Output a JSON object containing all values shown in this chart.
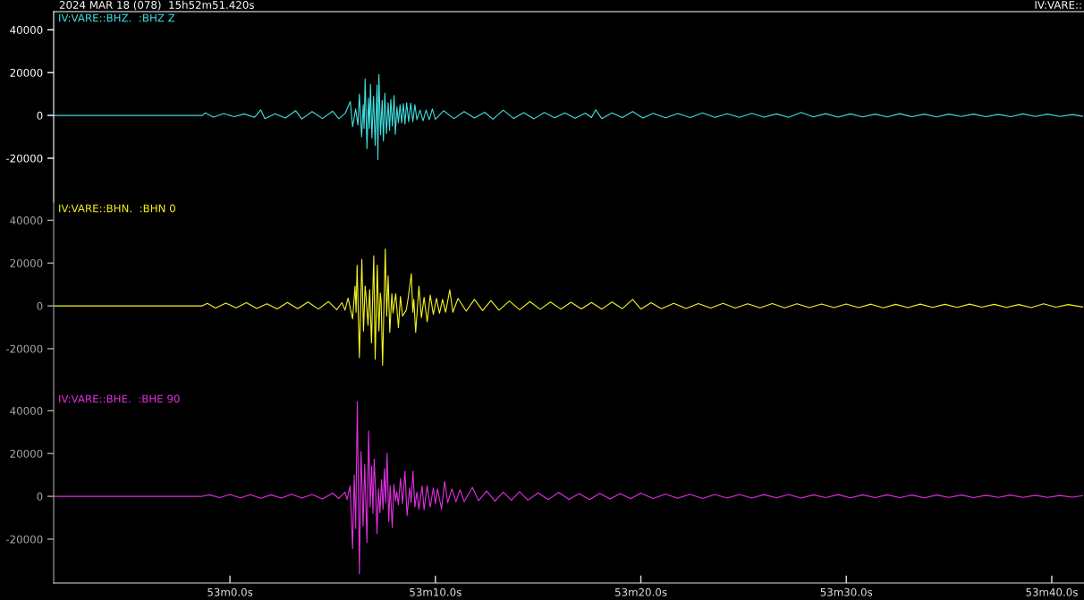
{
  "chart_data": [
    {
      "type": "line",
      "title": "2024 MAR 18 (078)  15h52m51.420s",
      "annotations": [
        "IV:VARE::"
      ],
      "series": [
        {
          "name": "IV:VARE::BHZ.  :BHZ Z",
          "color": "#40e0e0",
          "x": [
            "2024-03-18T15:52:51.42",
            "2024-03-18T15:52:58.65",
            "2024-03-18T15:52:58.8",
            "2024-03-18T15:52:59.2",
            "2024-03-18T15:52:59.7",
            "2024-03-18T15:53:00.2",
            "2024-03-18T15:53:00.7",
            "2024-03-18T15:53:01.2",
            "2024-03-18T15:53:01.5",
            "2024-03-18T15:53:01.7",
            "2024-03-18T15:53:02.2",
            "2024-03-18T15:53:02.7",
            "2024-03-18T15:53:03.2",
            "2024-03-18T15:53:03.5",
            "2024-03-18T15:53:04",
            "2024-03-18T15:53:04.5",
            "2024-03-18T15:53:05",
            "2024-03-18T15:53:05.3",
            "2024-03-18T15:53:05.61",
            "2024-03-18T15:53:05.86",
            "2024-03-18T15:53:05.97",
            "2024-03-18T15:53:06.12",
            "2024-03-18T15:53:06.23",
            "2024-03-18T15:53:06.3",
            "2024-03-18T15:53:06.41",
            "2024-03-18T15:53:06.49",
            "2024-03-18T15:53:06.53",
            "2024-03-18T15:53:06.58",
            "2024-03-18T15:53:06.67",
            "2024-03-18T15:53:06.74",
            "2024-03-18T15:53:06.79",
            "2024-03-18T15:53:06.84",
            "2024-03-18T15:53:06.91",
            "2024-03-18T15:53:06.99",
            "2024-03-18T15:53:07.07",
            "2024-03-18T15:53:07.16",
            "2024-03-18T15:53:07.2",
            "2024-03-18T15:53:07.25",
            "2024-03-18T15:53:07.33",
            "2024-03-18T15:53:07.41",
            "2024-03-18T15:53:07.47",
            "2024-03-18T15:53:07.54",
            "2024-03-18T15:53:07.62",
            "2024-03-18T15:53:07.7",
            "2024-03-18T15:53:07.77",
            "2024-03-18T15:53:07.83",
            "2024-03-18T15:53:07.91",
            "2024-03-18T15:53:07.99",
            "2024-03-18T15:53:08.05",
            "2024-03-18T15:53:08.13",
            "2024-03-18T15:53:08.2",
            "2024-03-18T15:53:08.28",
            "2024-03-18T15:53:08.36",
            "2024-03-18T15:53:08.44",
            "2024-03-18T15:53:08.52",
            "2024-03-18T15:53:08.6",
            "2024-03-18T15:53:08.7",
            "2024-03-18T15:53:08.8",
            "2024-03-18T15:53:08.9",
            "2024-03-18T15:53:09",
            "2024-03-18T15:53:09.1",
            "2024-03-18T15:53:09.25",
            "2024-03-18T15:53:09.4",
            "2024-03-18T15:53:09.55",
            "2024-03-18T15:53:09.7",
            "2024-03-18T15:53:09.85",
            "2024-03-18T15:53:10",
            "2024-03-18T15:53:10.4",
            "2024-03-18T15:53:10.9",
            "2024-03-18T15:53:11.4",
            "2024-03-18T15:53:11.9",
            "2024-03-18T15:53:12.4",
            "2024-03-18T15:53:12.8",
            "2024-03-18T15:53:13.3",
            "2024-03-18T15:53:13.8",
            "2024-03-18T15:53:14.3",
            "2024-03-18T15:53:14.8",
            "2024-03-18T15:53:15.3",
            "2024-03-18T15:53:15.8",
            "2024-03-18T15:53:16.3",
            "2024-03-18T15:53:16.8",
            "2024-03-18T15:53:17.3",
            "2024-03-18T15:53:17.6",
            "2024-03-18T15:53:17.8",
            "2024-03-18T15:53:18.1",
            "2024-03-18T15:53:18.6",
            "2024-03-18T15:53:19.1",
            "2024-03-18T15:53:19.6",
            "2024-03-18T15:53:20.1",
            "2024-03-18T15:53:20.6",
            "2024-03-18T15:53:21.2",
            "2024-03-18T15:53:21.8",
            "2024-03-18T15:53:22.4",
            "2024-03-18T15:53:23",
            "2024-03-18T15:53:23.6",
            "2024-03-18T15:53:24.2",
            "2024-03-18T15:53:24.8",
            "2024-03-18T15:53:25.4",
            "2024-03-18T15:53:26",
            "2024-03-18T15:53:26.6",
            "2024-03-18T15:53:27.2",
            "2024-03-18T15:53:27.8",
            "2024-03-18T15:53:28.4",
            "2024-03-18T15:53:29",
            "2024-03-18T15:53:29.6",
            "2024-03-18T15:53:30.2",
            "2024-03-18T15:53:30.8",
            "2024-03-18T15:53:31.4",
            "2024-03-18T15:53:32",
            "2024-03-18T15:53:32.6",
            "2024-03-18T15:53:33.2",
            "2024-03-18T15:53:33.8",
            "2024-03-18T15:53:34.4",
            "2024-03-18T15:53:35",
            "2024-03-18T15:53:35.6",
            "2024-03-18T15:53:36.2",
            "2024-03-18T15:53:36.8",
            "2024-03-18T15:53:37.4",
            "2024-03-18T15:53:38",
            "2024-03-18T15:53:38.6",
            "2024-03-18T15:53:39.2",
            "2024-03-18T15:53:39.8",
            "2024-03-18T15:53:40.4",
            "2024-03-18T15:53:41",
            "2024-03-18T15:53:41.5"
          ],
          "values": [
            0,
            0,
            1200,
            -800,
            900,
            -600,
            700,
            -900,
            2600,
            -1500,
            800,
            -1200,
            2200,
            -1700,
            1800,
            -1500,
            2000,
            -1600,
            1000,
            6500,
            -5300,
            3000,
            -4500,
            10000,
            -10000,
            5000,
            -6000,
            17000,
            -15500,
            8000,
            -6000,
            14500,
            -10500,
            9000,
            -14000,
            14200,
            -20600,
            19100,
            -9000,
            7000,
            -12000,
            10500,
            -8500,
            6000,
            -7000,
            7500,
            -5000,
            9300,
            -8800,
            4000,
            -3500,
            5000,
            -3500,
            5500,
            -4000,
            6000,
            -3000,
            5800,
            -3000,
            5000,
            -2000,
            2500,
            -2500,
            2500,
            -2000,
            3000,
            -1800,
            2200,
            -1500,
            1800,
            -1200,
            1500,
            -1800,
            2500,
            -1400,
            1300,
            -1600,
            1400,
            -1100,
            1200,
            -1300,
            1100,
            -1000,
            2600,
            -1500,
            1200,
            -1000,
            1800,
            -1200,
            1000,
            -1100,
            900,
            -1000,
            1200,
            -900,
            800,
            -900,
            1000,
            -800,
            700,
            -900,
            1400,
            -700,
            800,
            -800,
            700,
            -700,
            600,
            -700,
            800,
            -600,
            600,
            -700,
            600,
            -500,
            600,
            -600,
            500,
            -600,
            700,
            -500,
            600,
            -500,
            400,
            -400
          ]
        }
      ],
      "xlim": [
        "2024-03-18T15:52:51.42",
        "2024-03-18T15:53:41.57"
      ],
      "ylim": [
        -40500,
        48500
      ],
      "yticks": [
        -20000,
        0,
        20000,
        40000
      ],
      "tick_labels": "y"
    },
    {
      "type": "line",
      "series": [
        {
          "name": "IV:VARE::BHN.  :BHN 0",
          "color": "#f4f420",
          "x": [
            "2024-03-18T15:52:51.42",
            "2024-03-18T15:52:58.65",
            "2024-03-18T15:52:58.9",
            "2024-03-18T15:52:59.3",
            "2024-03-18T15:52:59.8",
            "2024-03-18T15:53:00.3",
            "2024-03-18T15:53:00.8",
            "2024-03-18T15:53:01.3",
            "2024-03-18T15:53:01.8",
            "2024-03-18T15:53:02.3",
            "2024-03-18T15:53:02.8",
            "2024-03-18T15:53:03.3",
            "2024-03-18T15:53:03.8",
            "2024-03-18T15:53:04.3",
            "2024-03-18T15:53:04.8",
            "2024-03-18T15:53:05.2",
            "2024-03-18T15:53:05.45",
            "2024-03-18T15:53:05.6",
            "2024-03-18T15:53:05.75",
            "2024-03-18T15:53:05.97",
            "2024-03-18T15:53:06.09",
            "2024-03-18T15:53:06.14",
            "2024-03-18T15:53:06.19",
            "2024-03-18T15:53:06.3",
            "2024-03-18T15:53:06.42",
            "2024-03-18T15:53:06.5",
            "2024-03-18T15:53:06.58",
            "2024-03-18T15:53:06.63",
            "2024-03-18T15:53:06.72",
            "2024-03-18T15:53:06.8",
            "2024-03-18T15:53:06.89",
            "2024-03-18T15:53:07",
            "2024-03-18T15:53:07.07",
            "2024-03-18T15:53:07.17",
            "2024-03-18T15:53:07.25",
            "2024-03-18T15:53:07.32",
            "2024-03-18T15:53:07.36",
            "2024-03-18T15:53:07.43",
            "2024-03-18T15:53:07.56",
            "2024-03-18T15:53:07.63",
            "2024-03-18T15:53:07.7",
            "2024-03-18T15:53:07.78",
            "2024-03-18T15:53:07.88",
            "2024-03-18T15:53:07.94",
            "2024-03-18T15:53:08.07",
            "2024-03-18T15:53:08.2",
            "2024-03-18T15:53:08.3",
            "2024-03-18T15:53:08.4",
            "2024-03-18T15:53:08.58",
            "2024-03-18T15:53:08.68",
            "2024-03-18T15:53:08.83",
            "2024-03-18T15:53:08.9",
            "2024-03-18T15:53:08.95",
            "2024-03-18T15:53:09.04",
            "2024-03-18T15:53:09.2",
            "2024-03-18T15:53:09.32",
            "2024-03-18T15:53:09.45",
            "2024-03-18T15:53:09.6",
            "2024-03-18T15:53:09.75",
            "2024-03-18T15:53:09.9",
            "2024-03-18T15:53:10.05",
            "2024-03-18T15:53:10.2",
            "2024-03-18T15:53:10.35",
            "2024-03-18T15:53:10.5",
            "2024-03-18T15:53:10.7",
            "2024-03-18T15:53:10.85",
            "2024-03-18T15:53:11.1",
            "2024-03-18T15:53:11.5",
            "2024-03-18T15:53:11.9",
            "2024-03-18T15:53:12.3",
            "2024-03-18T15:53:12.7",
            "2024-03-18T15:53:13.1",
            "2024-03-18T15:53:13.6",
            "2024-03-18T15:53:14.1",
            "2024-03-18T15:53:14.6",
            "2024-03-18T15:53:15.1",
            "2024-03-18T15:53:15.6",
            "2024-03-18T15:53:16.1",
            "2024-03-18T15:53:16.6",
            "2024-03-18T15:53:17.1",
            "2024-03-18T15:53:17.6",
            "2024-03-18T15:53:18.1",
            "2024-03-18T15:53:18.6",
            "2024-03-18T15:53:19.1",
            "2024-03-18T15:53:19.6",
            "2024-03-18T15:53:20",
            "2024-03-18T15:53:20.5",
            "2024-03-18T15:53:21",
            "2024-03-18T15:53:21.6",
            "2024-03-18T15:53:22.2",
            "2024-03-18T15:53:22.8",
            "2024-03-18T15:53:23.4",
            "2024-03-18T15:53:24",
            "2024-03-18T15:53:24.6",
            "2024-03-18T15:53:25.2",
            "2024-03-18T15:53:25.8",
            "2024-03-18T15:53:26.4",
            "2024-03-18T15:53:27",
            "2024-03-18T15:53:27.6",
            "2024-03-18T15:53:28.2",
            "2024-03-18T15:53:28.8",
            "2024-03-18T15:53:29.4",
            "2024-03-18T15:53:30",
            "2024-03-18T15:53:30.6",
            "2024-03-18T15:53:31.2",
            "2024-03-18T15:53:31.8",
            "2024-03-18T15:53:32.4",
            "2024-03-18T15:53:33",
            "2024-03-18T15:53:33.6",
            "2024-03-18T15:53:34.2",
            "2024-03-18T15:53:34.8",
            "2024-03-18T15:53:35.4",
            "2024-03-18T15:53:36",
            "2024-03-18T15:53:36.6",
            "2024-03-18T15:53:37.2",
            "2024-03-18T15:53:37.8",
            "2024-03-18T15:53:38.4",
            "2024-03-18T15:53:39",
            "2024-03-18T15:53:39.6",
            "2024-03-18T15:53:40.2",
            "2024-03-18T15:53:40.8",
            "2024-03-18T15:53:41.5"
          ],
          "values": [
            0,
            0,
            1200,
            -1000,
            1300,
            -900,
            1500,
            -1200,
            1000,
            -1400,
            1600,
            -1300,
            1800,
            -1500,
            2000,
            -1800,
            1500,
            -2000,
            3600,
            -6100,
            9200,
            -3000,
            19000,
            -24200,
            21700,
            -11800,
            9300,
            4000,
            -9000,
            7600,
            -17300,
            23400,
            -24900,
            19000,
            -11700,
            6000,
            2000,
            -27700,
            26600,
            -4800,
            14000,
            -12400,
            5700,
            -3300,
            5700,
            -10200,
            4400,
            -4800,
            -2000,
            4000,
            15000,
            -3000,
            3000,
            -12400,
            9200,
            -5500,
            4000,
            -7500,
            5000,
            -4000,
            3500,
            -3500,
            3000,
            -3000,
            7500,
            -3000,
            3500,
            -2500,
            3000,
            -2200,
            2500,
            -2000,
            2300,
            -1800,
            2000,
            -1600,
            1800,
            -1500,
            1700,
            -1400,
            1600,
            -1500,
            1800,
            -1300,
            3000,
            -1500,
            1500,
            -1300,
            1200,
            -1200,
            1100,
            -1000,
            1200,
            -1000,
            1000,
            -900,
            1100,
            -900,
            1000,
            -800,
            900,
            -800,
            900,
            -800,
            800,
            -900,
            700,
            -800,
            800,
            -700,
            700,
            -700,
            800,
            -600,
            700,
            -700,
            600,
            -800,
            1000,
            -600,
            600,
            -500
          ]
        }
      ],
      "xlim": [
        "2024-03-18T15:52:51.42",
        "2024-03-18T15:53:41.57"
      ],
      "ylim": [
        -40500,
        48500
      ],
      "yticks": [
        -20000,
        0,
        20000,
        40000
      ],
      "tick_labels": "y"
    },
    {
      "type": "line",
      "series": [
        {
          "name": "IV:VARE::BHE.  :BHE 90",
          "color": "#e030e0",
          "x": [
            "2024-03-18T15:52:51.42",
            "2024-03-18T15:52:58.65",
            "2024-03-18T15:52:59",
            "2024-03-18T15:52:59.5",
            "2024-03-18T15:53:00",
            "2024-03-18T15:53:00.5",
            "2024-03-18T15:53:01",
            "2024-03-18T15:53:01.5",
            "2024-03-18T15:53:02",
            "2024-03-18T15:53:02.5",
            "2024-03-18T15:53:03",
            "2024-03-18T15:53:03.5",
            "2024-03-18T15:53:04",
            "2024-03-18T15:53:04.5",
            "2024-03-18T15:53:05",
            "2024-03-18T15:53:05.3",
            "2024-03-18T15:53:05.6",
            "2024-03-18T15:53:05.7",
            "2024-03-18T15:53:05.85",
            "2024-03-18T15:53:05.97",
            "2024-03-18T15:53:06.05",
            "2024-03-18T15:53:06.12",
            "2024-03-18T15:53:06.2",
            "2024-03-18T15:53:06.3",
            "2024-03-18T15:53:06.38",
            "2024-03-18T15:53:06.43",
            "2024-03-18T15:53:06.48",
            "2024-03-18T15:53:06.56",
            "2024-03-18T15:53:06.67",
            "2024-03-18T15:53:06.75",
            "2024-03-18T15:53:06.83",
            "2024-03-18T15:53:06.9",
            "2024-03-18T15:53:06.96",
            "2024-03-18T15:53:07.02",
            "2024-03-18T15:53:07.09",
            "2024-03-18T15:53:07.16",
            "2024-03-18T15:53:07.23",
            "2024-03-18T15:53:07.3",
            "2024-03-18T15:53:07.38",
            "2024-03-18T15:53:07.45",
            "2024-03-18T15:53:07.52",
            "2024-03-18T15:53:07.58",
            "2024-03-18T15:53:07.65",
            "2024-03-18T15:53:07.73",
            "2024-03-18T15:53:07.8",
            "2024-03-18T15:53:07.9",
            "2024-03-18T15:53:07.98",
            "2024-03-18T15:53:08.06",
            "2024-03-18T15:53:08.12",
            "2024-03-18T15:53:08.2",
            "2024-03-18T15:53:08.3",
            "2024-03-18T15:53:08.4",
            "2024-03-18T15:53:08.52",
            "2024-03-18T15:53:08.62",
            "2024-03-18T15:53:08.75",
            "2024-03-18T15:53:08.82",
            "2024-03-18T15:53:08.91",
            "2024-03-18T15:53:09",
            "2024-03-18T15:53:09.1",
            "2024-03-18T15:53:09.2",
            "2024-03-18T15:53:09.35",
            "2024-03-18T15:53:09.45",
            "2024-03-18T15:53:09.6",
            "2024-03-18T15:53:09.75",
            "2024-03-18T15:53:09.9",
            "2024-03-18T15:53:10",
            "2024-03-18T15:53:10.1",
            "2024-03-18T15:53:10.3",
            "2024-03-18T15:53:10.45",
            "2024-03-18T15:53:10.6",
            "2024-03-18T15:53:10.8",
            "2024-03-18T15:53:11",
            "2024-03-18T15:53:11.2",
            "2024-03-18T15:53:11.4",
            "2024-03-18T15:53:11.8",
            "2024-03-18T15:53:12.1",
            "2024-03-18T15:53:12.5",
            "2024-03-18T15:53:12.9",
            "2024-03-18T15:53:13.3",
            "2024-03-18T15:53:13.7",
            "2024-03-18T15:53:14.1",
            "2024-03-18T15:53:14.5",
            "2024-03-18T15:53:15",
            "2024-03-18T15:53:15.5",
            "2024-03-18T15:53:16",
            "2024-03-18T15:53:16.5",
            "2024-03-18T15:53:17",
            "2024-03-18T15:53:17.5",
            "2024-03-18T15:53:18",
            "2024-03-18T15:53:18.5",
            "2024-03-18T15:53:19",
            "2024-03-18T15:53:19.5",
            "2024-03-18T15:53:20",
            "2024-03-18T15:53:20.6",
            "2024-03-18T15:53:21.2",
            "2024-03-18T15:53:21.8",
            "2024-03-18T15:53:22.4",
            "2024-03-18T15:53:23",
            "2024-03-18T15:53:23.6",
            "2024-03-18T15:53:24.2",
            "2024-03-18T15:53:24.8",
            "2024-03-18T15:53:25.4",
            "2024-03-18T15:53:26",
            "2024-03-18T15:53:26.6",
            "2024-03-18T15:53:27.2",
            "2024-03-18T15:53:27.8",
            "2024-03-18T15:53:28.4",
            "2024-03-18T15:53:29",
            "2024-03-18T15:53:29.6",
            "2024-03-18T15:53:30.2",
            "2024-03-18T15:53:30.8",
            "2024-03-18T15:53:31.4",
            "2024-03-18T15:53:32",
            "2024-03-18T15:53:32.6",
            "2024-03-18T15:53:33.2",
            "2024-03-18T15:53:33.8",
            "2024-03-18T15:53:34.4",
            "2024-03-18T15:53:35",
            "2024-03-18T15:53:35.6",
            "2024-03-18T15:53:36.2",
            "2024-03-18T15:53:36.8",
            "2024-03-18T15:53:37.4",
            "2024-03-18T15:53:38",
            "2024-03-18T15:53:38.6",
            "2024-03-18T15:53:39.2",
            "2024-03-18T15:53:39.8",
            "2024-03-18T15:53:40.4",
            "2024-03-18T15:53:41",
            "2024-03-18T15:53:41.5"
          ],
          "values": [
            0,
            0,
            700,
            -600,
            900,
            -700,
            800,
            -900,
            700,
            -800,
            1000,
            -800,
            900,
            -1200,
            1500,
            -1000,
            2000,
            -1500,
            4900,
            -24400,
            10000,
            -15000,
            44200,
            -36200,
            20900,
            6000,
            -13900,
            15000,
            -21600,
            30600,
            -5000,
            14000,
            -8000,
            17400,
            3000,
            -17400,
            3500,
            -7700,
            7700,
            -6000,
            13000,
            -3000,
            20200,
            -11800,
            5000,
            -14600,
            5600,
            -2000,
            2100,
            -4000,
            8500,
            -3500,
            11800,
            -9000,
            4000,
            -3000,
            11800,
            -5000,
            2000,
            -6000,
            4900,
            -6300,
            4900,
            -5000,
            4000,
            -3500,
            3500,
            -6000,
            7000,
            -3000,
            3500,
            -2500,
            3000,
            -2500,
            4200,
            -2000,
            2500,
            -2200,
            2000,
            -1800,
            2200,
            -1800,
            1600,
            -1500,
            1800,
            -1400,
            1300,
            -1500,
            1400,
            -1200,
            1300,
            -1100,
            1500,
            -1000,
            1100,
            -900,
            1000,
            -1000,
            900,
            -800,
            900,
            -800,
            800,
            -700,
            900,
            -800,
            700,
            -600,
            800,
            -700,
            700,
            -600,
            700,
            -600,
            600,
            -700,
            600,
            -500,
            600,
            -600,
            500,
            -500,
            600,
            -500,
            500,
            -500,
            400,
            -400,
            300
          ]
        }
      ],
      "xlim": [
        "2024-03-18T15:52:51.42",
        "2024-03-18T15:53:41.57"
      ],
      "xticks": [
        {
          "value": "2024-03-18T15:53:00",
          "label": "53m0.0s"
        },
        {
          "value": "2024-03-18T15:53:10",
          "label": "53m10.0s"
        },
        {
          "value": "2024-03-18T15:53:20",
          "label": "53m20.0s"
        },
        {
          "value": "2024-03-18T15:53:30",
          "label": "53m30.0s"
        },
        {
          "value": "2024-03-18T15:53:40",
          "label": "53m40.0s"
        }
      ],
      "ylim": [
        -40500,
        48500
      ],
      "yticks": [
        -20000,
        0,
        20000,
        40000
      ]
    }
  ]
}
